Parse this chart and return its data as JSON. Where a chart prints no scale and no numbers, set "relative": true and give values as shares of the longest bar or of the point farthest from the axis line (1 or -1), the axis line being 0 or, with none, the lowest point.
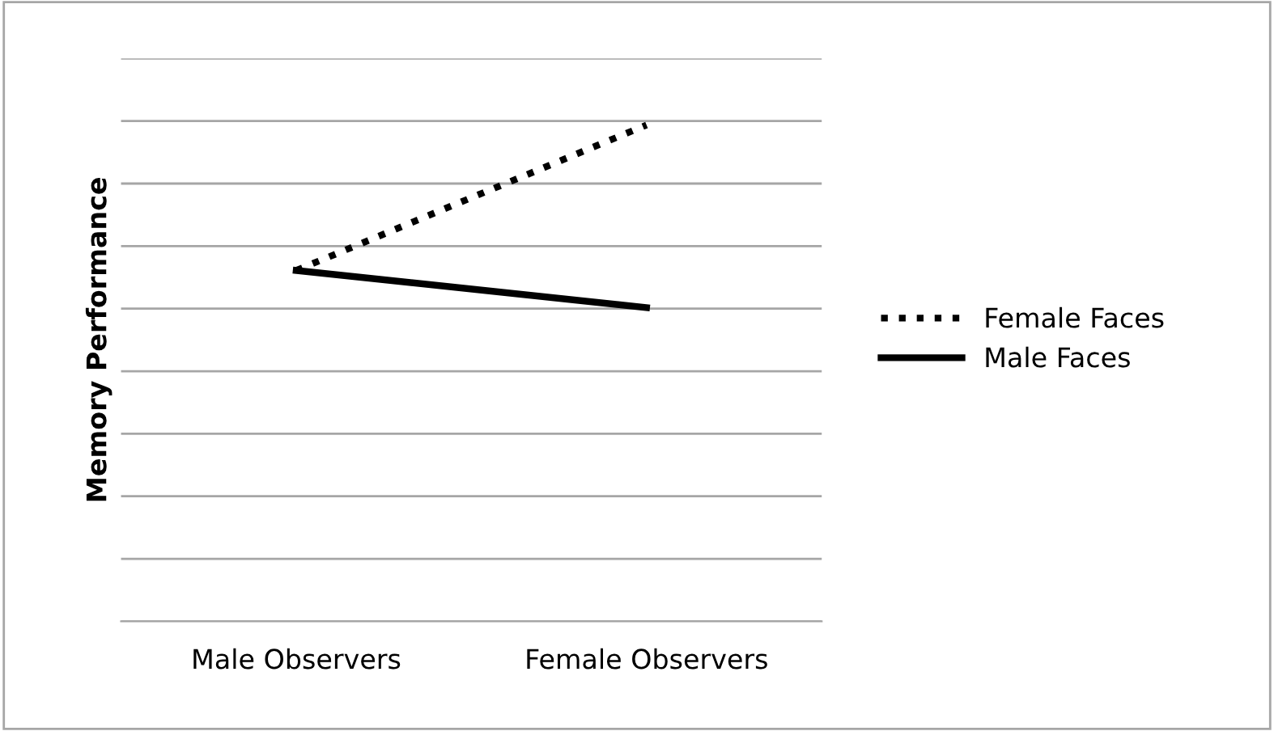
{
  "chart_data": {
    "type": "line",
    "ylabel": "Memory Performance",
    "categories": [
      "Male Observers",
      "Female Observers"
    ],
    "relative": true,
    "grid": "y",
    "legend": "right",
    "marker": "none",
    "series": [
      {
        "name": "Female Faces",
        "color": "#000000",
        "line_style": "dotted",
        "values": [
          0.707,
          1
        ]
      },
      {
        "name": "Male Faces",
        "color": "#000000",
        "line_style": "solid",
        "values": [
          0.707,
          0.632
        ]
      }
    ]
  }
}
